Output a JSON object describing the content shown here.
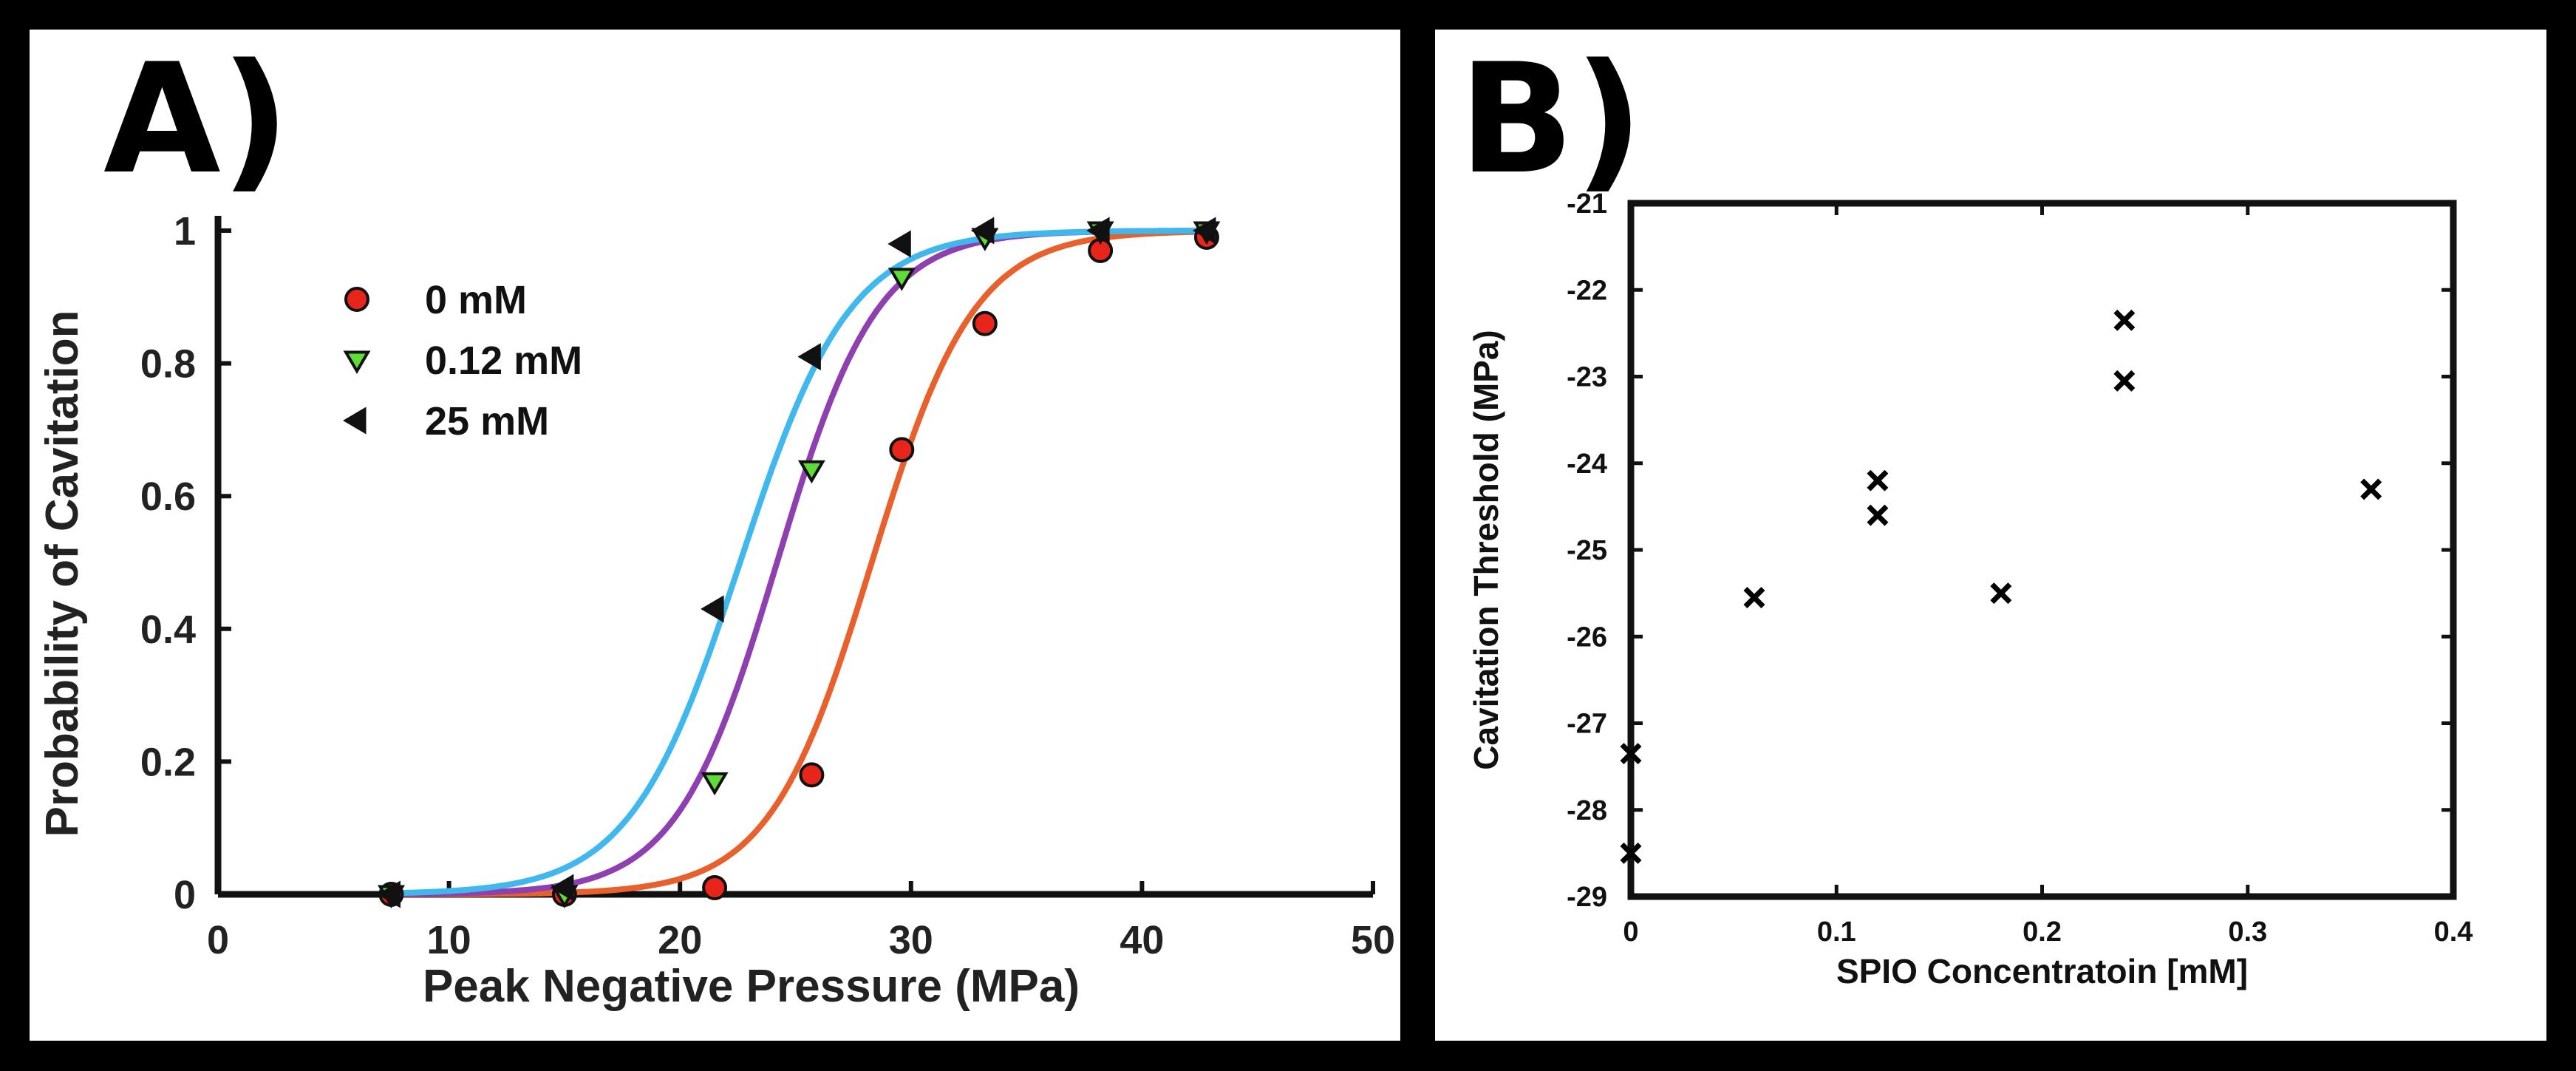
{
  "chart_data": [
    {
      "panel_label": "A)",
      "type": "scatter",
      "fit": "sigmoid",
      "title": "",
      "xlabel": "Peak Negative Pressure (MPa)",
      "ylabel": "Probability of Cavitation",
      "xlim": [
        0,
        50
      ],
      "ylim": [
        0,
        1
      ],
      "xticks": [
        0,
        10,
        20,
        30,
        40,
        50
      ],
      "yticks": [
        0,
        0.2,
        0.4,
        0.6,
        0.8,
        1
      ],
      "ytick_labels": [
        "0",
        "0.2",
        "0.4",
        "0.6",
        "0.8",
        "1"
      ],
      "legend_position": "top-left",
      "series": [
        {
          "name": "0 mM",
          "marker": "circle",
          "marker_color": "#e8251a",
          "line_color": "#e8612c",
          "fit_center": 28.3,
          "fit_slope": 0.45,
          "x": [
            7.5,
            15,
            21.5,
            25.7,
            29.6,
            33.2,
            38.2,
            42.8
          ],
          "y": [
            0,
            0,
            0.01,
            0.18,
            0.67,
            0.86,
            0.97,
            0.99
          ]
        },
        {
          "name": "0.12 mM",
          "marker": "triangle-down",
          "marker_color": "#5fdc37",
          "line_color": "#8e3fb0",
          "fit_center": 24.2,
          "fit_slope": 0.46,
          "x": [
            7.5,
            15,
            21.5,
            25.7,
            29.6,
            33.2,
            38.2,
            42.8
          ],
          "y": [
            0,
            0,
            0.17,
            0.64,
            0.93,
            0.99,
            1,
            1
          ]
        },
        {
          "name": "25 mM",
          "marker": "triangle-left",
          "marker_color": "#111111",
          "line_color": "#40b8ee",
          "fit_center": 22.6,
          "fit_slope": 0.42,
          "x": [
            7.5,
            15,
            21.5,
            25.7,
            29.6,
            33.2,
            38.2,
            42.8
          ],
          "y": [
            0,
            0.01,
            0.43,
            0.81,
            0.98,
            1,
            1,
            1
          ]
        }
      ]
    },
    {
      "panel_label": "B)",
      "type": "scatter",
      "title": "",
      "xlabel": "SPIO Concentratoin [mM]",
      "ylabel": "Cavitation Threshold (MPa)",
      "xlim": [
        0,
        0.4
      ],
      "ylim": [
        -29,
        -21
      ],
      "xticks": [
        0,
        0.1,
        0.2,
        0.3,
        0.4
      ],
      "yticks": [
        -29,
        -28,
        -27,
        -26,
        -25,
        -24,
        -23,
        -22,
        -21
      ],
      "marker": "x",
      "marker_color": "#000000",
      "points": [
        {
          "x": 0,
          "y": -27.35
        },
        {
          "x": 0,
          "y": -28.5
        },
        {
          "x": 0.06,
          "y": -25.55
        },
        {
          "x": 0.12,
          "y": -24.2
        },
        {
          "x": 0.12,
          "y": -24.6
        },
        {
          "x": 0.18,
          "y": -25.5
        },
        {
          "x": 0.24,
          "y": -22.35
        },
        {
          "x": 0.24,
          "y": -23.05
        },
        {
          "x": 0.36,
          "y": -24.3
        }
      ]
    }
  ]
}
